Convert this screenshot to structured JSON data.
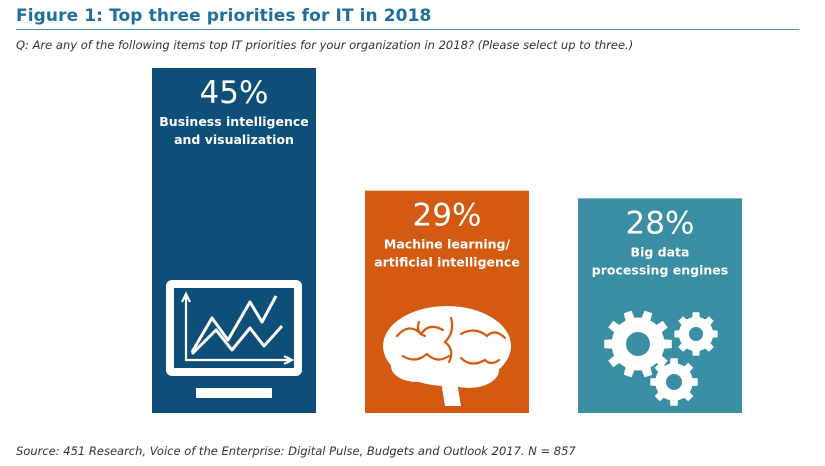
{
  "header": {
    "title": "Figure 1: Top three priorities for IT in 2018",
    "question": "Q: Are any of the following items top IT priorities for your organization in 2018? (Please select up to three.)",
    "source": "Source: 451 Research, Voice of the Enterprise: Digital Pulse, Budgets and Outlook 2017. N = 857"
  },
  "colors": {
    "title": "#1f6f9e",
    "rule": "#4a90b8"
  },
  "chart_data": {
    "type": "bar",
    "title": "Figure 1: Top three priorities for IT in 2018",
    "categories": [
      "Business intelligence and visualization",
      "Machine learning/ artificial intelligence",
      "Big data processing engines"
    ],
    "values": [
      45,
      29,
      28
    ],
    "unit": "%",
    "ylim": [
      0,
      45
    ],
    "grid": false,
    "bars": [
      {
        "percent_label": "45%",
        "label_lines": [
          "Business intelligence",
          "and visualization"
        ],
        "color": "#0d4f78",
        "icon": "monitor-chart-icon"
      },
      {
        "percent_label": "29%",
        "label_lines": [
          "Machine learning/",
          "artificial intelligence"
        ],
        "color": "#d35a10",
        "icon": "brain-icon"
      },
      {
        "percent_label": "28%",
        "label_lines": [
          "Big data",
          "processing engines"
        ],
        "color": "#3a8ea3",
        "icon": "gears-icon"
      }
    ]
  }
}
